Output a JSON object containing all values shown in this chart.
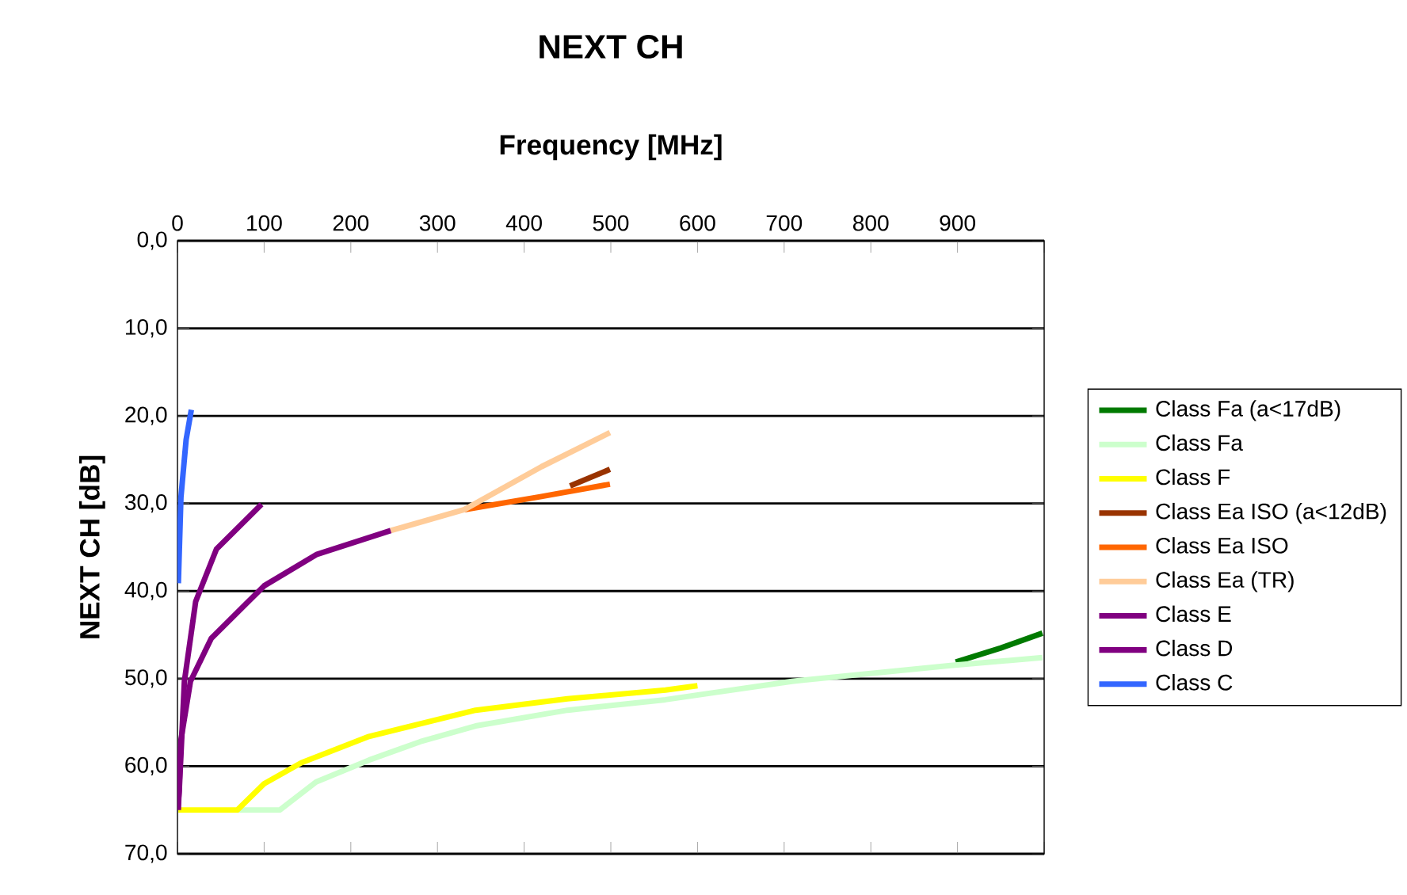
{
  "chart_data": {
    "type": "line",
    "title": "NEXT CH",
    "xlabel": "Frequency [MHz]",
    "ylabel": "NEXT CH [dB]",
    "xlim": [
      0,
      1000
    ],
    "xticks": [
      0,
      100,
      200,
      300,
      400,
      500,
      600,
      700,
      800,
      900,
      {
        "value": 1000,
        "label": null
      }
    ],
    "annotations": [
      "100"
    ],
    "ylim": [
      70,
      0
    ],
    "yticks": [
      {
        "value": 0,
        "label": "0,0"
      },
      {
        "value": 10,
        "label": "10,0"
      },
      {
        "value": 20,
        "label": "20,0"
      },
      {
        "value": 30,
        "label": "30,0"
      },
      {
        "value": 40,
        "label": "40,0"
      },
      {
        "value": 50,
        "label": "50,0"
      },
      {
        "value": 60,
        "label": "60,0"
      },
      {
        "value": 70,
        "label": "70,0"
      }
    ],
    "grid": "y",
    "legend": "right",
    "series": [
      {
        "name": "Class Fa (a<17dB)",
        "color": "#007a00",
        "x": [
          898,
          950,
          998
        ],
        "values": [
          48.1,
          46.5,
          44.8
        ]
      },
      {
        "name": "Class Fa",
        "color": "#ccffcc",
        "x": [
          69,
          118,
          160,
          221,
          280,
          344,
          450,
          563,
          709,
          892,
          998
        ],
        "values": [
          65,
          65,
          61.8,
          59.3,
          57.2,
          55.4,
          53.6,
          52.4,
          50.3,
          48.5,
          47.6
        ]
      },
      {
        "name": "Class F",
        "color": "#ffff00",
        "x": [
          1,
          69,
          100,
          143,
          221,
          344,
          450,
          563,
          600
        ],
        "values": [
          65,
          65,
          62,
          59.6,
          56.6,
          53.6,
          52.3,
          51.3,
          50.8
        ]
      },
      {
        "name": "Class Ea ISO (a<12dB)",
        "color": "#993300",
        "x": [
          453,
          499
        ],
        "values": [
          28,
          26.1
        ]
      },
      {
        "name": "Class Ea ISO",
        "color": "#ff6600",
        "x": [
          331,
          420,
          499
        ],
        "values": [
          30.7,
          29.2,
          27.8
        ]
      },
      {
        "name": "Class Ea (TR)",
        "color": "#ffcc99",
        "x": [
          246,
          331,
          420,
          499
        ],
        "values": [
          33.1,
          30.7,
          25.8,
          21.9
        ]
      },
      {
        "name": "Class E",
        "color": "#800080",
        "x": [
          1,
          4,
          15,
          39,
          100,
          161,
          246
        ],
        "values": [
          65,
          57,
          50.3,
          45.4,
          39.4,
          35.8,
          33.1
        ]
      },
      {
        "name": "Class D",
        "color": "#800080",
        "x": [
          1,
          2,
          8,
          21,
          45,
          97
        ],
        "values": [
          64,
          62.9,
          50.3,
          41.2,
          35.2,
          30.1
        ]
      },
      {
        "name": "Class C",
        "color": "#3366ff",
        "x": [
          1,
          4,
          10,
          16
        ],
        "values": [
          39.1,
          29.3,
          22.7,
          19.3
        ]
      }
    ]
  }
}
